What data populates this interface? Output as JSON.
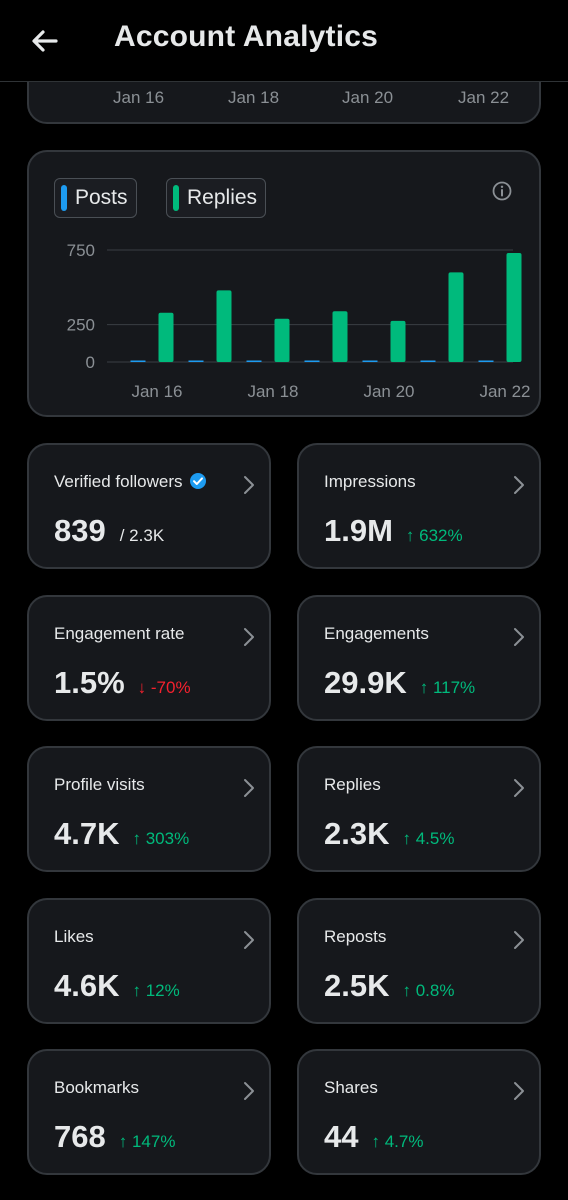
{
  "header": {
    "title": "Account Analytics"
  },
  "top_chart_x_labels": [
    "Jan 16",
    "Jan 18",
    "Jan 20",
    "Jan 22"
  ],
  "legend": {
    "posts": {
      "label": "Posts",
      "color": "#1d9bf0"
    },
    "replies": {
      "label": "Replies",
      "color": "#00ba7c"
    }
  },
  "chart_data": {
    "type": "bar",
    "categories": [
      "Jan 16",
      "Jan 17",
      "Jan 18",
      "Jan 19",
      "Jan 20",
      "Jan 21",
      "Jan 22"
    ],
    "x_tick_labels": [
      "Jan 16",
      "Jan 18",
      "Jan 20",
      "Jan 22"
    ],
    "y_tick_labels": [
      "750",
      "250",
      "0"
    ],
    "y_ticks": [
      750,
      250,
      0
    ],
    "ylim": [
      0,
      800
    ],
    "series": [
      {
        "name": "Posts",
        "values": [
          2,
          2,
          2,
          2,
          2,
          2,
          2
        ]
      },
      {
        "name": "Replies",
        "values": [
          330,
          480,
          290,
          340,
          275,
          600,
          730
        ]
      }
    ]
  },
  "metrics": [
    {
      "label": "Verified followers",
      "value": "839",
      "sub": "/ 2.3K",
      "change": "",
      "dir": "none",
      "verified": true
    },
    {
      "label": "Impressions",
      "value": "1.9M",
      "sub": "",
      "change": "↑ 632%",
      "dir": "up"
    },
    {
      "label": "Engagement rate",
      "value": "1.5%",
      "sub": "",
      "change": "↓ -70%",
      "dir": "down"
    },
    {
      "label": "Engagements",
      "value": "29.9K",
      "sub": "",
      "change": "↑ 117%",
      "dir": "up"
    },
    {
      "label": "Profile visits",
      "value": "4.7K",
      "sub": "",
      "change": "↑ 303%",
      "dir": "up"
    },
    {
      "label": "Replies",
      "value": "2.3K",
      "sub": "",
      "change": "↑ 4.5%",
      "dir": "up"
    },
    {
      "label": "Likes",
      "value": "4.6K",
      "sub": "",
      "change": "↑ 12%",
      "dir": "up"
    },
    {
      "label": "Reposts",
      "value": "2.5K",
      "sub": "",
      "change": "↑ 0.8%",
      "dir": "up"
    },
    {
      "label": "Bookmarks",
      "value": "768",
      "sub": "",
      "change": "↑ 147%",
      "dir": "up"
    },
    {
      "label": "Shares",
      "value": "44",
      "sub": "",
      "change": "↑ 4.7%",
      "dir": "up"
    }
  ]
}
